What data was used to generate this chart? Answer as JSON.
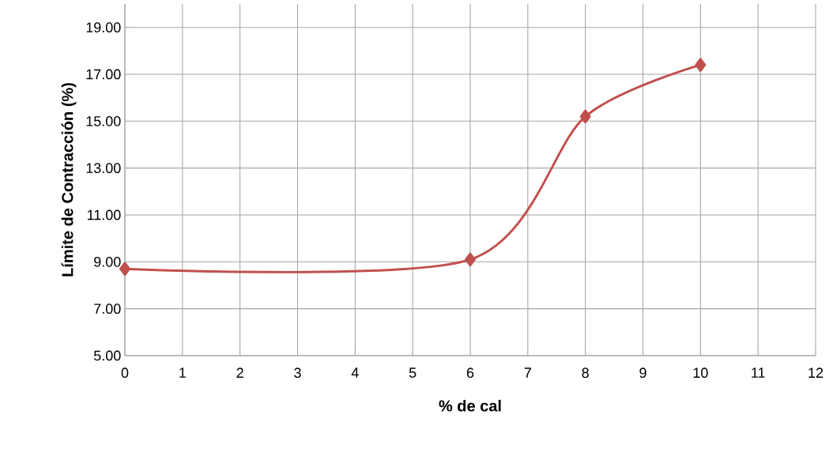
{
  "chart_data": {
    "type": "line",
    "xlabel": "% de cal",
    "ylabel": "Límite de Contracción (%)",
    "x": [
      0,
      6,
      8,
      10
    ],
    "series": [
      {
        "color": "#c0504d",
        "values": [
          8.7,
          9.1,
          15.2,
          17.4
        ]
      }
    ],
    "xlim": [
      0,
      12
    ],
    "ylim": [
      5,
      20
    ],
    "xticks": [
      0,
      1,
      2,
      3,
      4,
      5,
      6,
      7,
      8,
      9,
      10,
      11,
      12
    ],
    "yticks": [
      {
        "value": 5,
        "label": "5.00"
      },
      {
        "value": 7,
        "label": "7.00"
      },
      {
        "value": 9,
        "label": "9.00"
      },
      {
        "value": 11,
        "label": "11.00"
      },
      {
        "value": 13,
        "label": "13.00"
      },
      {
        "value": 15,
        "label": "15.00"
      },
      {
        "value": 17,
        "label": "17.00"
      },
      {
        "value": 19,
        "label": "19.00"
      }
    ],
    "grid": true,
    "marker": "diamond",
    "line_style": "solid"
  }
}
